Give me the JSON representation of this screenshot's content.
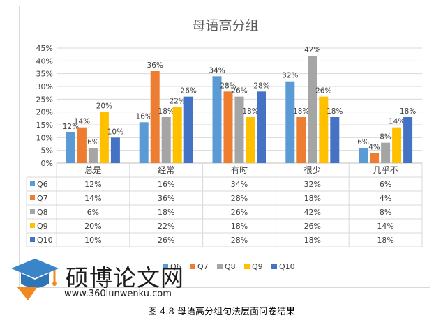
{
  "chart_data": {
    "type": "bar",
    "title": "母语高分组",
    "categories": [
      "总是",
      "经常",
      "有时",
      "很少",
      "几乎不"
    ],
    "series": [
      {
        "name": "Q6",
        "color": "#5b9bd5",
        "values": [
          12,
          16,
          34,
          32,
          6
        ],
        "labels": [
          "12%",
          "16%",
          "34%",
          "32%",
          "6%"
        ]
      },
      {
        "name": "Q7",
        "color": "#ed7d31",
        "values": [
          14,
          36,
          28,
          18,
          4
        ],
        "labels": [
          "14%",
          "36%",
          "28%",
          "18%",
          "4%"
        ]
      },
      {
        "name": "Q8",
        "color": "#a5a5a5",
        "values": [
          6,
          18,
          26,
          42,
          8
        ],
        "labels": [
          "6%",
          "18%",
          "26%",
          "42%",
          "8%"
        ]
      },
      {
        "name": "Q9",
        "color": "#ffc000",
        "values": [
          20,
          22,
          18,
          26,
          14
        ],
        "labels": [
          "20%",
          "22%",
          "18%",
          "26%",
          "14%"
        ]
      },
      {
        "name": "Q10",
        "color": "#4472c4",
        "values": [
          10,
          26,
          28,
          18,
          18
        ],
        "labels": [
          "10%",
          "26%",
          "28%",
          "18%",
          "18%"
        ]
      }
    ],
    "ylim": [
      0,
      45
    ],
    "yticks": [
      "0%",
      "5%",
      "10%",
      "15%",
      "20%",
      "25%",
      "30%",
      "35%",
      "40%",
      "45%"
    ],
    "grid": true,
    "data_table": true,
    "legend_position": "bottom"
  },
  "watermark": {
    "title": "硕博论文网",
    "url": "www.360lunwenku.com"
  },
  "caption": "图 4.8  母语高分组句法层面问卷结果"
}
